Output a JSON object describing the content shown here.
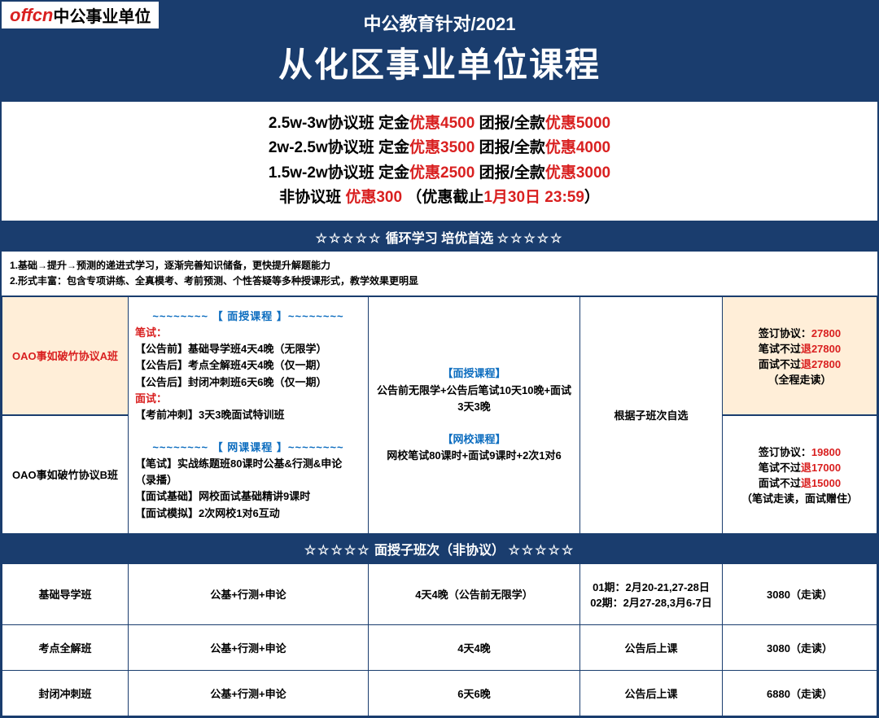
{
  "logo": {
    "red": "offcn",
    "black": "中公事业单位"
  },
  "header": {
    "sub": "中公教育针对/2021",
    "main": "从化区事业单位课程"
  },
  "promo": {
    "line1_a": "2.5w-3w协议班 定金",
    "line1_b": "优惠4500",
    "line1_c": " 团报/全款",
    "line1_d": "优惠5000",
    "line2_a": "2w-2.5w协议班 定金",
    "line2_b": "优惠3500",
    "line2_c": " 团报/全款",
    "line2_d": "优惠4000",
    "line3_a": "1.5w-2w协议班 定金",
    "line3_b": "优惠2500",
    "line3_c": " 团报/全款",
    "line3_d": "优惠3000",
    "line4_a": "非协议班 ",
    "line4_b": "优惠300",
    "line4_c": "  （优惠截止",
    "line4_d": "1月30日 23:59",
    "line4_e": "）"
  },
  "section1": {
    "stars": "☆☆☆☆☆",
    "title": " 循环学习  培优首选 "
  },
  "desc": {
    "d1": "1.基础→提升→预测的递进式学习，逐渐完善知识储备，更快提升解题能力",
    "d2": "2.形式丰富：包含专项讲练、全真模考、考前预测、个性答疑等多种授课形式，教学效果更明显"
  },
  "rowA": {
    "name": "OAO事如破竹协议A班",
    "wavy1": "~~~~~~~~ 【 面授课程 】~~~~~~~~",
    "bishi": "笔试：",
    "b1": "【公告前】基础导学班4天4晚（无限学）",
    "b2": "【公告后】考点全解班4天4晚（仅一期）",
    "b3": "【公告后】封闭冲刺班6天6晚（仅一期）",
    "mianshi": "面试：",
    "m1": "【考前冲刺】3天3晚面试特训班",
    "price_l1a": "签订协议：",
    "price_l1b": "27800",
    "price_l2a": "笔试不过",
    "price_l2b": "退",
    "price_l2c": "27800",
    "price_l3a": "面试不过",
    "price_l3b": "退",
    "price_l3c": "27800",
    "price_l4": "（全程走读）"
  },
  "rowB": {
    "name": "OAO事如破竹协议B班",
    "wavy2": "~~~~~~~~ 【 网课课程 】~~~~~~~~",
    "c1": "【笔试】实战练题班80课时公基&行测&申论（录播）",
    "c2": "【面试基础】网校面试基础精讲9课时",
    "c3": "【面试模拟】2次网校1对6互动",
    "price_l1a": "签订协议：",
    "price_l1b": "19800",
    "price_l2a": "笔试不过",
    "price_l2b": "退",
    "price_l2c": "17000",
    "price_l3a": "面试不过",
    "price_l3b": "退",
    "price_l3c": "15000",
    "price_l4": "（笔试走读，面试赠住）"
  },
  "mid": {
    "h1": "【面授课程】",
    "t1": "公告前无限学+公告后笔试10天10晚+面试3天3晚",
    "h2": "【网校课程】",
    "t2": "网校笔试80课时+面试9课时+2次1对6"
  },
  "pick": "根据子班次自选",
  "section2": {
    "stars": "☆☆☆☆☆",
    "title": " 面授子班次（非协议） "
  },
  "sub": {
    "r1": {
      "c1": "基础导学班",
      "c2": "公基+行测+申论",
      "c3": "4天4晚（公告前无限学）",
      "c4a": "01期：2月20-21,27-28日",
      "c4b": "02期：2月27-28,3月6-7日",
      "c5": "3080（走读）"
    },
    "r2": {
      "c1": "考点全解班",
      "c2": "公基+行测+申论",
      "c3": "4天4晚",
      "c4": "公告后上课",
      "c5": "3080（走读）"
    },
    "r3": {
      "c1": "封闭冲刺班",
      "c2": "公基+行测+申论",
      "c3": "6天6晚",
      "c4": "公告后上课",
      "c5": "6880（走读）"
    }
  }
}
